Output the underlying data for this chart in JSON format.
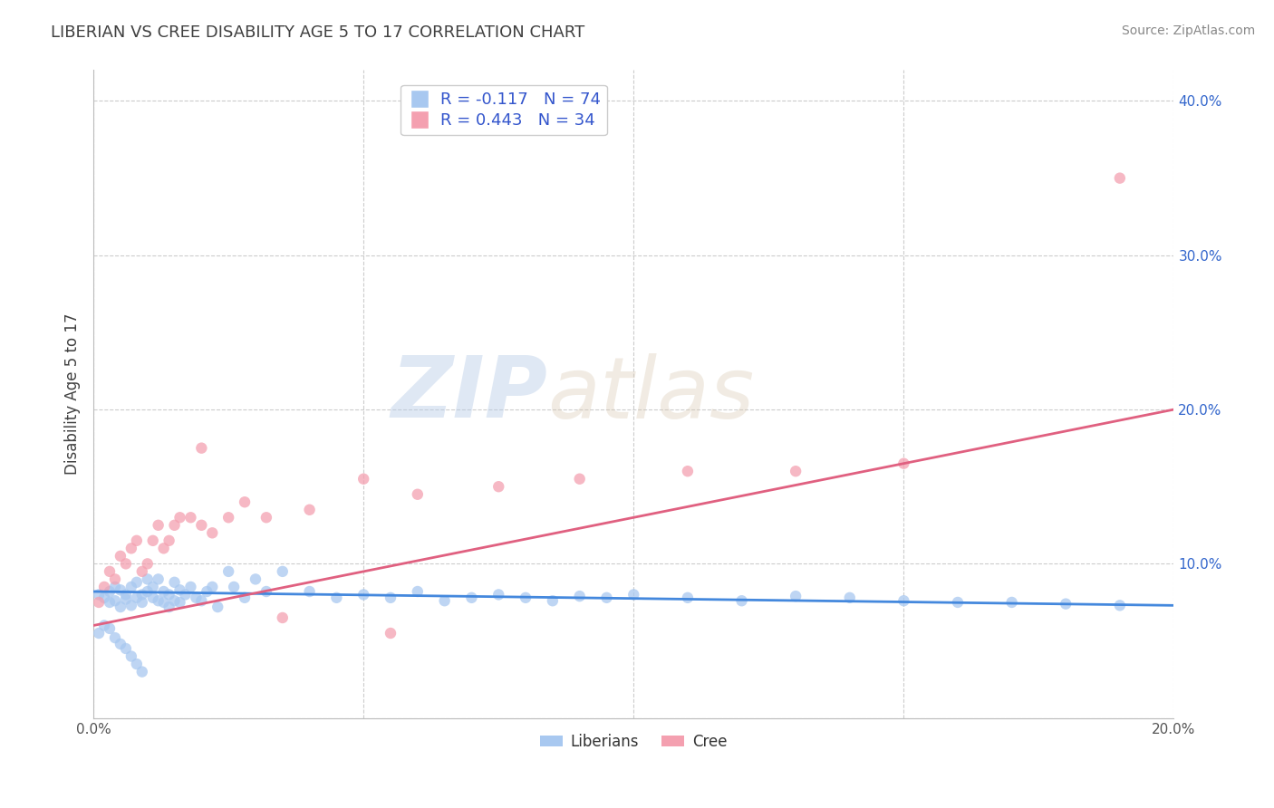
{
  "title": "LIBERIAN VS CREE DISABILITY AGE 5 TO 17 CORRELATION CHART",
  "source": "Source: ZipAtlas.com",
  "xlabel": "",
  "ylabel": "Disability Age 5 to 17",
  "xlim": [
    0.0,
    0.2
  ],
  "ylim": [
    0.0,
    0.42
  ],
  "xticks": [
    0.0,
    0.2
  ],
  "yticks": [
    0.1,
    0.2,
    0.3,
    0.4
  ],
  "xtick_labels": [
    "0.0%",
    "20.0%"
  ],
  "ytick_labels": [
    "10.0%",
    "20.0%",
    "30.0%",
    "40.0%"
  ],
  "grid_xticks": [
    0.0,
    0.05,
    0.1,
    0.15,
    0.2
  ],
  "grid_yticks": [
    0.0,
    0.1,
    0.2,
    0.3,
    0.4
  ],
  "liberian_color": "#a8c8f0",
  "cree_color": "#f4a0b0",
  "liberian_line_color": "#4488dd",
  "cree_line_color": "#e06080",
  "R_liberian": -0.117,
  "N_liberian": 74,
  "R_cree": 0.443,
  "N_cree": 34,
  "legend_label_liberian": "Liberians",
  "legend_label_cree": "Cree",
  "watermark_zip": "ZIP",
  "watermark_atlas": "atlas",
  "title_color": "#404040",
  "axis_label_color": "#404040",
  "legend_text_color": "#3355cc",
  "grid_color": "#cccccc",
  "liberian_line_x0": 0.0,
  "liberian_line_x1": 0.2,
  "liberian_line_y0": 0.082,
  "liberian_line_y1": 0.073,
  "cree_line_x0": 0.0,
  "cree_line_x1": 0.2,
  "cree_line_y0": 0.06,
  "cree_line_y1": 0.2,
  "liberian_scatter_x": [
    0.001,
    0.002,
    0.003,
    0.003,
    0.004,
    0.004,
    0.005,
    0.005,
    0.006,
    0.006,
    0.007,
    0.007,
    0.008,
    0.008,
    0.009,
    0.009,
    0.01,
    0.01,
    0.011,
    0.011,
    0.012,
    0.012,
    0.013,
    0.013,
    0.014,
    0.014,
    0.015,
    0.015,
    0.016,
    0.016,
    0.017,
    0.018,
    0.019,
    0.02,
    0.021,
    0.022,
    0.023,
    0.025,
    0.026,
    0.028,
    0.03,
    0.032,
    0.035,
    0.04,
    0.045,
    0.05,
    0.055,
    0.06,
    0.065,
    0.07,
    0.075,
    0.08,
    0.085,
    0.09,
    0.095,
    0.1,
    0.11,
    0.12,
    0.13,
    0.14,
    0.15,
    0.16,
    0.17,
    0.18,
    0.19,
    0.001,
    0.002,
    0.003,
    0.004,
    0.005,
    0.006,
    0.007,
    0.008,
    0.009
  ],
  "liberian_scatter_y": [
    0.08,
    0.078,
    0.082,
    0.075,
    0.085,
    0.076,
    0.083,
    0.072,
    0.08,
    0.077,
    0.085,
    0.073,
    0.078,
    0.088,
    0.08,
    0.075,
    0.082,
    0.09,
    0.085,
    0.078,
    0.076,
    0.09,
    0.075,
    0.082,
    0.072,
    0.08,
    0.088,
    0.076,
    0.083,
    0.075,
    0.08,
    0.085,
    0.078,
    0.076,
    0.082,
    0.085,
    0.072,
    0.095,
    0.085,
    0.078,
    0.09,
    0.082,
    0.095,
    0.082,
    0.078,
    0.08,
    0.078,
    0.082,
    0.076,
    0.078,
    0.08,
    0.078,
    0.076,
    0.079,
    0.078,
    0.08,
    0.078,
    0.076,
    0.079,
    0.078,
    0.076,
    0.075,
    0.075,
    0.074,
    0.073,
    0.055,
    0.06,
    0.058,
    0.052,
    0.048,
    0.045,
    0.04,
    0.035,
    0.03
  ],
  "cree_scatter_x": [
    0.001,
    0.002,
    0.003,
    0.004,
    0.005,
    0.006,
    0.007,
    0.008,
    0.009,
    0.01,
    0.011,
    0.012,
    0.013,
    0.014,
    0.015,
    0.016,
    0.018,
    0.02,
    0.022,
    0.025,
    0.028,
    0.032,
    0.04,
    0.05,
    0.06,
    0.075,
    0.09,
    0.11,
    0.13,
    0.15,
    0.02,
    0.035,
    0.055,
    0.19
  ],
  "cree_scatter_y": [
    0.075,
    0.085,
    0.095,
    0.09,
    0.105,
    0.1,
    0.11,
    0.115,
    0.095,
    0.1,
    0.115,
    0.125,
    0.11,
    0.115,
    0.125,
    0.13,
    0.13,
    0.125,
    0.12,
    0.13,
    0.14,
    0.13,
    0.135,
    0.155,
    0.145,
    0.15,
    0.155,
    0.16,
    0.16,
    0.165,
    0.175,
    0.065,
    0.055,
    0.35
  ]
}
